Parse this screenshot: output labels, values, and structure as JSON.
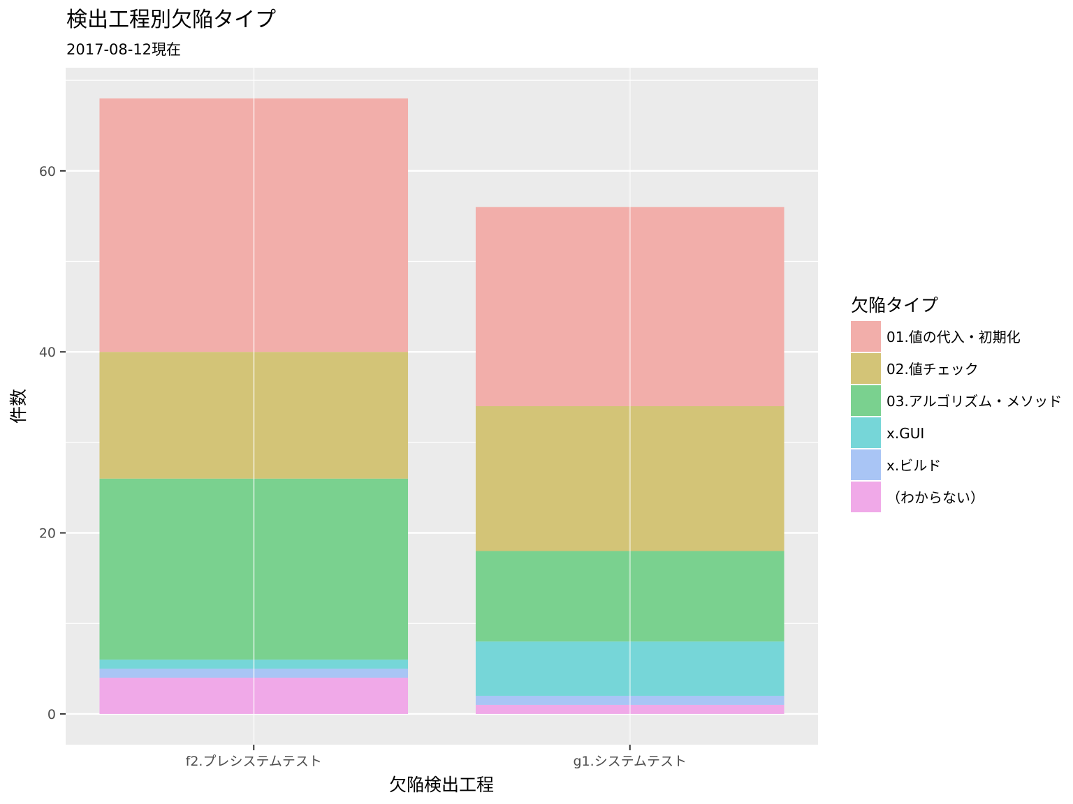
{
  "chart_data": {
    "type": "bar",
    "stacked": true,
    "title": "検出工程別欠陥タイプ",
    "subtitle": "2017-08-12現在",
    "xlabel": "欠陥検出工程",
    "ylabel": "件数",
    "categories": [
      "f2.プレシステムテスト",
      "g1.システムテスト"
    ],
    "ylim": [
      -3.4,
      71.4
    ],
    "yticks": [
      0,
      20,
      40,
      60
    ],
    "grid": true,
    "legend_title": "欠陥タイプ",
    "legend_position": "right",
    "series": [
      {
        "name": "01.値の代入・初期化",
        "color": "#F2AEAA",
        "values": [
          28,
          22
        ]
      },
      {
        "name": "02.値チェック",
        "color": "#D3C477",
        "values": [
          14,
          16
        ]
      },
      {
        "name": "03.アルゴリズム・メソッド",
        "color": "#7AD18F",
        "values": [
          20,
          10
        ]
      },
      {
        "name": "x.GUI",
        "color": "#76D6D8",
        "values": [
          1,
          6
        ]
      },
      {
        "name": "x.ビルド",
        "color": "#A9C5F5",
        "values": [
          1,
          1
        ]
      },
      {
        "name": "（わからない）",
        "color": "#F0A9E8",
        "values": [
          4,
          1
        ]
      }
    ],
    "stack_order_bottom_to_top": [
      "（わからない）",
      "x.ビルド",
      "x.GUI",
      "03.アルゴリズム・メソッド",
      "02.値チェック",
      "01.値の代入・初期化"
    ]
  }
}
